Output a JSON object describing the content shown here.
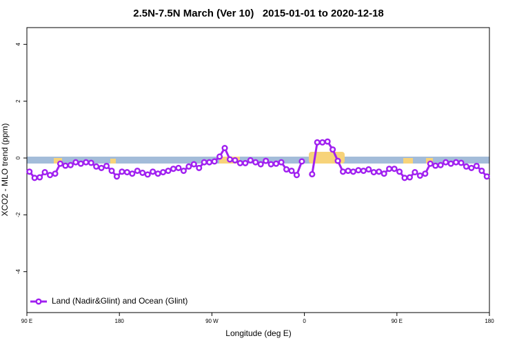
{
  "chart_data": {
    "type": "line",
    "title": "2.5N-7.5N March (Ver 10)   2015-01-01 to 2020-12-18",
    "xlabel": "Longitude (deg E)",
    "ylabel": "XCO2 - MLO trend (ppm)",
    "xlim": [
      90,
      540
    ],
    "xticks": [
      {
        "value": 90,
        "label": "90 E"
      },
      {
        "value": 180,
        "label": "180"
      },
      {
        "value": 270,
        "label": "90 W"
      },
      {
        "value": 360,
        "label": "0"
      },
      {
        "value": 450,
        "label": "90 E"
      },
      {
        "value": 540,
        "label": "180"
      }
    ],
    "ylim": [
      -5.44,
      4.59
    ],
    "yticks": [
      -4,
      -2,
      0,
      2,
      4
    ],
    "legend": "bottom-left",
    "x": [
      92.5,
      97.5,
      102.5,
      107.5,
      112.5,
      117.5,
      122.5,
      127.5,
      132.5,
      137.5,
      142.5,
      147.5,
      152.5,
      157.5,
      162.5,
      167.5,
      172.5,
      177.5,
      182.5,
      187.5,
      192.5,
      197.5,
      202.5,
      207.5,
      212.5,
      217.5,
      222.5,
      227.5,
      232.5,
      237.5,
      242.5,
      247.5,
      252.5,
      257.5,
      262.5,
      267.5,
      272.5,
      277.5,
      282.5,
      287.5,
      292.5,
      297.5,
      302.5,
      307.5,
      312.5,
      317.5,
      322.5,
      327.5,
      332.5,
      337.5,
      342.5,
      347.5,
      352.5,
      357.5,
      362.5,
      367.5,
      372.5,
      377.5,
      382.5,
      387.5,
      392.5,
      397.5,
      402.5,
      407.5,
      412.5,
      417.5,
      422.5,
      427.5,
      432.5,
      437.5,
      442.5,
      447.5,
      452.5,
      457.5,
      462.5,
      467.5,
      472.5,
      477.5,
      482.5,
      487.5,
      492.5,
      497.5,
      502.5,
      507.5,
      512.5,
      517.5,
      522.5,
      527.5,
      532.5,
      537.5
    ],
    "series": [
      {
        "name": "Land (Nadir&Glint) and Ocean (Glint)",
        "color": "#a020f0",
        "values": [
          -0.48,
          -0.7,
          -0.68,
          -0.5,
          -0.6,
          -0.55,
          -0.2,
          -0.27,
          -0.25,
          -0.15,
          -0.2,
          -0.15,
          -0.17,
          -0.3,
          -0.35,
          -0.28,
          -0.45,
          -0.65,
          -0.48,
          -0.5,
          -0.55,
          -0.45,
          -0.52,
          -0.58,
          -0.48,
          -0.55,
          -0.5,
          -0.45,
          -0.38,
          -0.35,
          -0.45,
          -0.3,
          -0.22,
          -0.35,
          -0.15,
          -0.15,
          -0.12,
          0.05,
          0.35,
          -0.05,
          -0.08,
          -0.18,
          -0.18,
          -0.08,
          -0.15,
          -0.22,
          -0.1,
          -0.22,
          -0.2,
          -0.15,
          -0.4,
          -0.45,
          -0.6,
          -0.12,
          null,
          -0.57,
          0.55,
          0.55,
          0.58,
          0.3,
          -0.1,
          -0.48,
          -0.45,
          -0.48,
          -0.43,
          -0.45,
          -0.4,
          -0.5,
          -0.48,
          -0.55,
          -0.38,
          -0.38,
          -0.48,
          -0.7,
          -0.68,
          -0.5,
          -0.62,
          -0.55,
          -0.2,
          -0.27,
          -0.25,
          -0.15,
          -0.2,
          -0.15,
          -0.17,
          -0.3,
          -0.35,
          -0.28,
          -0.45,
          -0.65
        ]
      }
    ]
  }
}
